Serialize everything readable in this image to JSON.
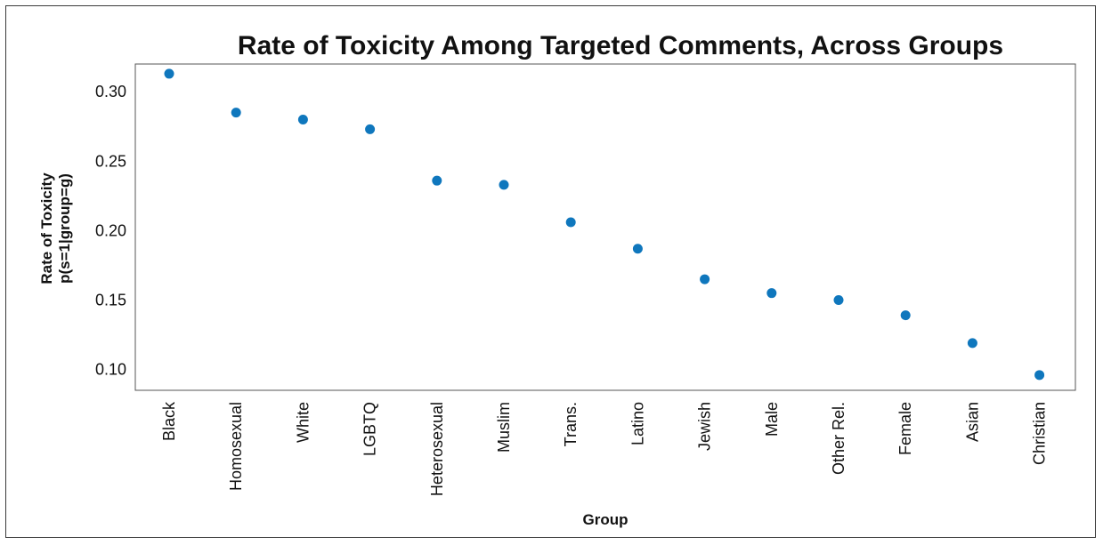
{
  "chart_data": {
    "type": "scatter",
    "title": "Rate of Toxicity Among Targeted Comments, Across Groups",
    "xlabel": "Group",
    "ylabel": [
      "Rate of Toxicity",
      "p(s=1|group=g)"
    ],
    "categories": [
      "Black",
      "Homosexual",
      "White",
      "LGBTQ",
      "Heterosexual",
      "Muslim",
      "Trans.",
      "Latino",
      "Jewish",
      "Male",
      "Other Rel.",
      "Female",
      "Asian",
      "Christian"
    ],
    "values": [
      0.313,
      0.285,
      0.28,
      0.273,
      0.236,
      0.233,
      0.206,
      0.187,
      0.165,
      0.155,
      0.15,
      0.139,
      0.119,
      0.096
    ],
    "yticks": [
      "0.10",
      "0.15",
      "0.20",
      "0.25",
      "0.30"
    ],
    "ylim": [
      0.085,
      0.32
    ],
    "grid": false,
    "point_color": "#0f77bd"
  }
}
